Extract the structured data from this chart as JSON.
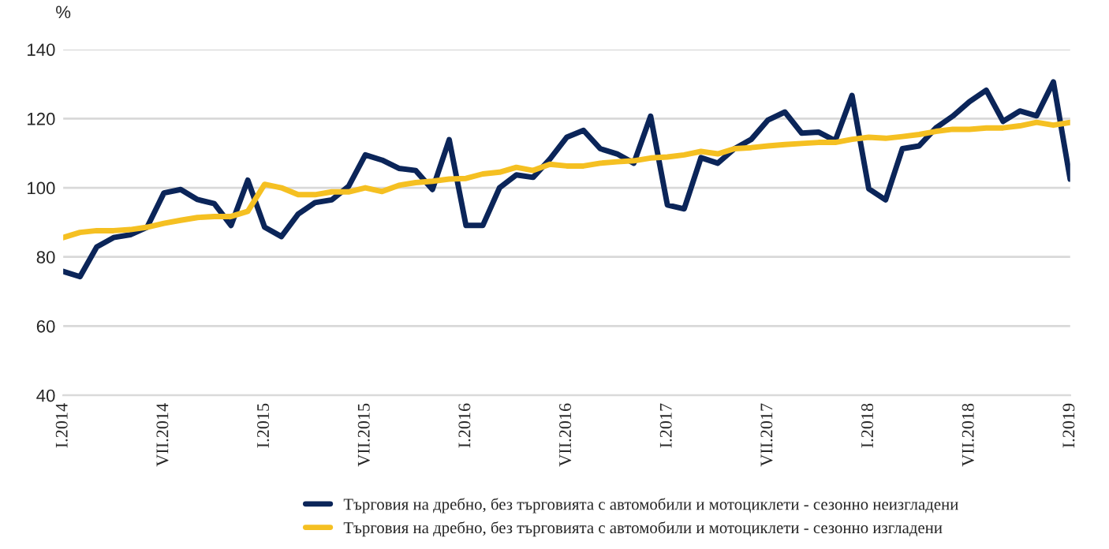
{
  "chart_data": {
    "type": "line",
    "ylabel": "%",
    "categories": [
      "I.2014",
      null,
      null,
      null,
      null,
      null,
      "VII.2014",
      null,
      null,
      null,
      null,
      null,
      "I.2015",
      null,
      null,
      null,
      null,
      null,
      "VII.2015",
      null,
      null,
      null,
      null,
      null,
      "I.2016",
      null,
      null,
      null,
      null,
      null,
      "VII.2016",
      null,
      null,
      null,
      null,
      null,
      "I.2017",
      null,
      null,
      null,
      null,
      null,
      "VII.2017",
      null,
      null,
      null,
      null,
      null,
      "I.2018",
      null,
      null,
      null,
      null,
      null,
      "VII.2018",
      null,
      null,
      null,
      null,
      null,
      "I.2019"
    ],
    "series": [
      {
        "name": "Търговия на дребно, без търговията с автомобили и мотоциклети - сезонно неизгладени",
        "color": "#0b2559",
        "values": [
          75.8,
          74.3,
          82.9,
          85.6,
          86.4,
          88.6,
          98.5,
          99.5,
          96.6,
          95.4,
          89.1,
          102.2,
          88.6,
          85.9,
          92.4,
          95.7,
          96.5,
          100.4,
          109.5,
          108,
          105.6,
          105,
          99.5,
          113.9,
          89.1,
          89.1,
          100,
          103.7,
          103,
          108.3,
          114.6,
          116.6,
          111.3,
          109.8,
          107.1,
          120.7,
          95,
          93.9,
          108.7,
          107.1,
          111.3,
          114,
          119.6,
          121.9,
          115.8,
          116.1,
          113.6,
          126.7,
          99.7,
          96.5,
          111.3,
          112.1,
          117.3,
          120.7,
          124.9,
          128.2,
          119.2,
          122.2,
          120.8,
          130.6,
          102.5
        ]
      },
      {
        "name": "Търговия на дребно, без търговията с автомобили и мотоциклети - сезонно изгладени",
        "color": "#f5c022",
        "values": [
          85.6,
          87.1,
          87.6,
          87.6,
          87.9,
          88.6,
          89.7,
          90.6,
          91.4,
          91.7,
          91.7,
          93.2,
          101,
          100,
          98,
          98,
          98.8,
          98.8,
          100,
          98.9,
          100.7,
          101.5,
          101.9,
          102.5,
          102.7,
          104,
          104.5,
          105.9,
          105,
          106.8,
          106.3,
          106.3,
          107.1,
          107.5,
          107.8,
          108.6,
          108.9,
          109.5,
          110.5,
          109.8,
          111.3,
          111.6,
          112.1,
          112.5,
          112.8,
          113.1,
          113.1,
          114,
          114.6,
          114.3,
          114.8,
          115.4,
          116.3,
          116.9,
          116.9,
          117.3,
          117.3,
          117.9,
          118.9,
          118.1,
          118.9
        ]
      }
    ],
    "ylim": [
      40,
      140
    ],
    "yticks": [
      40,
      60,
      80,
      100,
      120,
      140
    ],
    "grid": "y",
    "legend": "bottom",
    "line_style": "solid",
    "marker": "none"
  }
}
